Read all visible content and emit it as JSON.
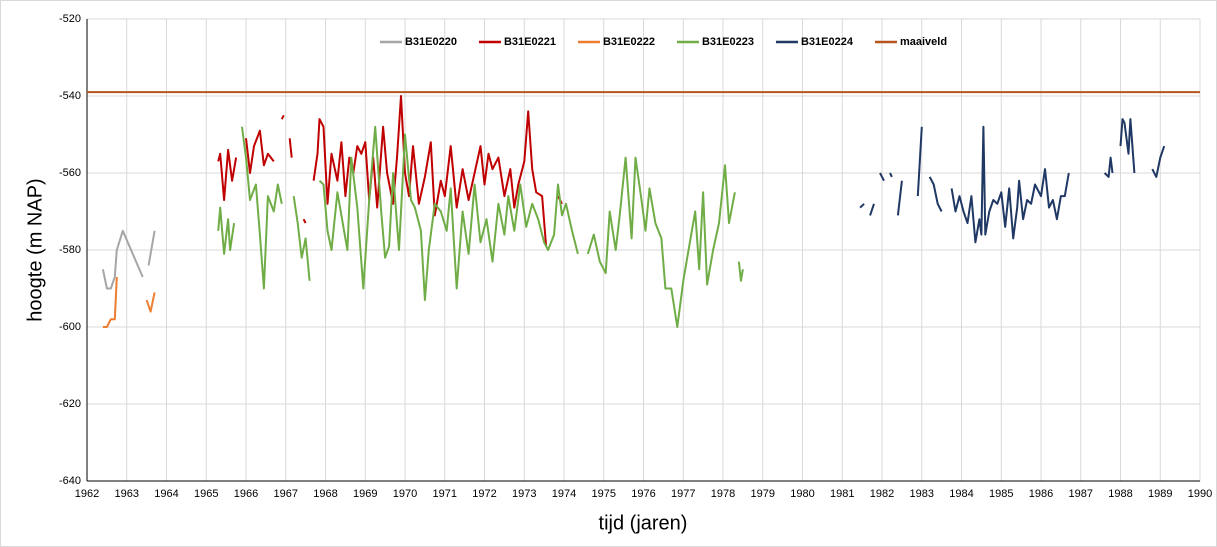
{
  "chart_data": {
    "type": "line",
    "xlabel": "tijd (jaren)",
    "ylabel": "hoogte (m NAP)",
    "xlim": [
      1962,
      1990
    ],
    "xticks": [
      1962,
      1963,
      1964,
      1965,
      1966,
      1967,
      1968,
      1969,
      1970,
      1971,
      1972,
      1973,
      1974,
      1975,
      1976,
      1977,
      1978,
      1979,
      1980,
      1981,
      1982,
      1983,
      1984,
      1985,
      1986,
      1987,
      1988,
      1989,
      1990
    ],
    "ylim": [
      -640,
      -520
    ],
    "yticks": [
      -640,
      -620,
      -600,
      -580,
      -560,
      -540,
      -520
    ],
    "grid": true,
    "legend": "top",
    "series": [
      {
        "name": "B31E0220",
        "color": "#a6a6a6",
        "x": [
          1962.4,
          1962.5,
          1962.6,
          1962.7,
          1962.75,
          1962.9,
          1963.4,
          null,
          1963.55,
          1963.7
        ],
        "values": [
          -585,
          -590,
          -590,
          -587,
          -580,
          -575,
          -587,
          null,
          -584,
          -575
        ]
      },
      {
        "name": "B31E0221",
        "color": "#c00000",
        "x": [
          1965.3,
          1965.35,
          1965.45,
          1965.55,
          1965.65,
          1965.75,
          null,
          1966.0,
          1966.1,
          1966.2,
          1966.35,
          1966.45,
          1966.55,
          1966.7,
          null,
          1966.9,
          1966.95,
          null,
          1967.1,
          1967.15,
          null,
          1967.45,
          1967.5,
          null,
          1967.7,
          1967.8,
          1967.85,
          1967.95,
          1968.05,
          1968.15,
          1968.3,
          1968.4,
          1968.5,
          1968.6,
          1968.7,
          1968.8,
          1968.9,
          1969.0,
          1969.1,
          1969.2,
          1969.3,
          1969.45,
          1969.55,
          1969.7,
          1969.8,
          1969.9,
          1970.0,
          1970.1,
          1970.2,
          1970.35,
          1970.5,
          1970.65,
          1970.75,
          1970.9,
          1971.0,
          1971.15,
          1971.3,
          1971.45,
          1971.6,
          1971.75,
          1971.9,
          1972.0,
          1972.1,
          1972.2,
          1972.35,
          1972.5,
          1972.65,
          1972.75,
          1972.85,
          1973.0,
          1973.1,
          1973.2,
          1973.3,
          1973.45,
          1973.55,
          null,
          1973.85,
          1973.95
        ],
        "values": [
          -557,
          -555,
          -567,
          -554,
          -562,
          -556,
          null,
          -551,
          -560,
          -553,
          -549,
          -558,
          -555,
          -557,
          null,
          -546,
          -545,
          null,
          -551,
          -556,
          null,
          -572,
          -573,
          null,
          -562,
          -555,
          -546,
          -548,
          -568,
          -555,
          -562,
          -552,
          -566,
          -556,
          -560,
          -553,
          -555,
          -552,
          -567,
          -556,
          -569,
          -548,
          -560,
          -568,
          -556,
          -540,
          -560,
          -566,
          -553,
          -568,
          -561,
          -552,
          -571,
          -562,
          -566,
          -553,
          -569,
          -559,
          -567,
          -560,
          -553,
          -563,
          -555,
          -559,
          -556,
          -566,
          -559,
          -569,
          -563,
          -557,
          -544,
          -559,
          -565,
          -566,
          -579,
          null,
          -566,
          -568
        ]
      },
      {
        "name": "B31E0222",
        "color": "#ed7d31",
        "x": [
          1962.4,
          1962.5,
          1962.6,
          1962.7,
          1962.75,
          null,
          1963.5,
          1963.6,
          1963.7
        ],
        "values": [
          -600,
          -600,
          -598,
          -598,
          -587,
          null,
          -593,
          -596,
          -591
        ]
      },
      {
        "name": "B31E0223",
        "color": "#70ad47",
        "x": [
          1965.3,
          1965.35,
          1965.45,
          1965.55,
          1965.6,
          1965.7,
          null,
          1965.9,
          1966.0,
          1966.1,
          1966.25,
          1966.35,
          1966.45,
          1966.55,
          1966.7,
          1966.8,
          1966.9,
          null,
          1967.2,
          1967.3,
          1967.4,
          1967.5,
          1967.6,
          null,
          1967.85,
          1967.95,
          1968.05,
          1968.15,
          1968.3,
          1968.45,
          1968.55,
          1968.65,
          1968.8,
          1968.95,
          1969.1,
          1969.25,
          1969.4,
          1969.5,
          1969.6,
          1969.7,
          1969.85,
          1970.0,
          1970.15,
          1970.25,
          1970.4,
          1970.5,
          1970.6,
          1970.75,
          1970.9,
          1971.05,
          1971.15,
          1971.3,
          1971.45,
          1971.6,
          1971.75,
          1971.9,
          1972.05,
          1972.2,
          1972.35,
          1972.5,
          1972.6,
          1972.75,
          1972.9,
          1973.05,
          1973.2,
          1973.35,
          1973.5,
          1973.6,
          1973.75,
          1973.85,
          1973.95,
          1974.05,
          1974.2,
          1974.35,
          null,
          1974.6,
          1974.75,
          1974.9,
          1975.05,
          1975.15,
          1975.3,
          1975.4,
          1975.55,
          1975.7,
          1975.8,
          1975.95,
          1976.05,
          1976.15,
          1976.3,
          1976.45,
          1976.55,
          1976.7,
          1976.85,
          1977.0,
          1977.15,
          1977.3,
          1977.4,
          1977.5,
          1977.6,
          1977.75,
          1977.9,
          1978.05,
          1978.15,
          1978.3,
          null,
          1978.4,
          1978.45,
          1978.5
        ],
        "values": [
          -575,
          -569,
          -581,
          -572,
          -580,
          -573,
          null,
          -548,
          -556,
          -567,
          -563,
          -576,
          -590,
          -566,
          -570,
          -563,
          -568,
          null,
          -566,
          -573,
          -582,
          -577,
          -588,
          null,
          -562,
          -563,
          -575,
          -580,
          -565,
          -574,
          -580,
          -556,
          -569,
          -590,
          -567,
          -548,
          -570,
          -582,
          -579,
          -560,
          -580,
          -550,
          -567,
          -569,
          -575,
          -593,
          -580,
          -568,
          -570,
          -575,
          -564,
          -590,
          -570,
          -581,
          -563,
          -578,
          -572,
          -583,
          -568,
          -576,
          -566,
          -575,
          -563,
          -574,
          -568,
          -572,
          -578,
          -580,
          -576,
          -563,
          -571,
          -568,
          -575,
          -581,
          null,
          -581,
          -576,
          -583,
          -586,
          -570,
          -580,
          -571,
          -556,
          -577,
          -556,
          -567,
          -575,
          -564,
          -573,
          -577,
          -590,
          -590,
          -600,
          -588,
          -579,
          -570,
          -585,
          -565,
          -589,
          -580,
          -573,
          -558,
          -573,
          -565,
          null,
          -583,
          -588,
          -585
        ]
      },
      {
        "name": "B31E0224",
        "color": "#1f3864",
        "x": [
          1981.3,
          null,
          1981.45,
          1981.55,
          null,
          1981.7,
          1981.8,
          null,
          1981.95,
          1982.05,
          null,
          1982.2,
          1982.25,
          null,
          1982.4,
          1982.5,
          null,
          1982.7,
          null,
          1982.9,
          1983.0,
          null,
          1983.2,
          1983.3,
          1983.4,
          1983.5,
          null,
          1983.75,
          1983.85,
          1983.95,
          1984.05,
          1984.15,
          1984.25,
          1984.35,
          1984.45,
          1984.5,
          1984.55,
          1984.6,
          1984.7,
          1984.8,
          1984.9,
          1985.0,
          1985.1,
          1985.2,
          1985.3,
          1985.4,
          1985.45,
          1985.55,
          1985.65,
          1985.75,
          1985.85,
          1986.0,
          1986.1,
          1986.2,
          1986.3,
          1986.4,
          1986.5,
          1986.6,
          1986.7,
          null,
          1986.9,
          null,
          1987.3,
          null,
          1987.6,
          1987.7,
          1987.75,
          1987.8,
          null,
          1988.0,
          1988.05,
          1988.1,
          1988.2,
          1988.25,
          1988.35,
          null,
          1988.8,
          1988.9,
          1989.0,
          1989.1
        ],
        "values": [
          -578,
          null,
          -569,
          -568,
          null,
          -571,
          -568,
          null,
          -560,
          -562,
          null,
          -560,
          -561,
          null,
          -571,
          -562,
          null,
          -561,
          null,
          -566,
          -548,
          null,
          -561,
          -563,
          -568,
          -570,
          null,
          -564,
          -570,
          -566,
          -570,
          -573,
          -566,
          -578,
          -572,
          -576,
          -548,
          -576,
          -570,
          -567,
          -568,
          -565,
          -574,
          -564,
          -577,
          -569,
          -562,
          -572,
          -567,
          -568,
          -563,
          -566,
          -559,
          -569,
          -567,
          -572,
          -566,
          -566,
          -560,
          null,
          -559,
          null,
          -568,
          null,
          -560,
          -561,
          -556,
          -560,
          null,
          -553,
          -546,
          -547,
          -555,
          -546,
          -560,
          null,
          -559,
          -561,
          -556,
          -553
        ]
      },
      {
        "name": "maaiveld",
        "color": "#b5541c",
        "x": [
          1962,
          1990
        ],
        "values": [
          -539,
          -539
        ]
      }
    ]
  }
}
